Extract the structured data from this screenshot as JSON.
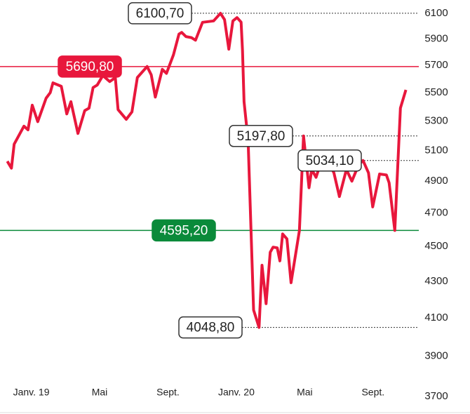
{
  "chart_data": {
    "type": "line",
    "log_scale": true,
    "x": [
      -1.4,
      -1.16,
      -1.0,
      -0.43,
      -0.19,
      0.06,
      0.38,
      0.87,
      1.11,
      1.27,
      1.76,
      2.08,
      2.32,
      2.73,
      3.13,
      3.38,
      3.62,
      3.86,
      4.19,
      4.59,
      4.92,
      5.08,
      5.56,
      5.89,
      6.21,
      6.78,
      7.02,
      7.26,
      7.67,
      7.91,
      8.32,
      8.64,
      8.8,
      9.05,
      9.37,
      9.61,
      10.02,
      10.67,
      11.07,
      11.31,
      11.56,
      11.8,
      12.04,
      12.28,
      12.36,
      12.45,
      12.69,
      13.01,
      13.33,
      13.5,
      13.74,
      13.98,
      14.15,
      14.39,
      14.55,
      14.71,
      14.96,
      15.2,
      15.69,
      15.93,
      16.25,
      16.41,
      16.66,
      16.9,
      17.22,
      17.47,
      17.71,
      18.03,
      18.44,
      18.76,
      19.17,
      19.41,
      19.73,
      19.98,
      20.38,
      20.78,
      20.94,
      21.27,
      21.6,
      21.92
    ],
    "series": [
      {
        "color": "#e8173c",
        "values": [
          5029,
          4984,
          5143,
          5265,
          5240,
          5411,
          5296,
          5460,
          5500,
          5571,
          5546,
          5350,
          5436,
          5215,
          5373,
          5390,
          5537,
          5555,
          5624,
          5580,
          5609,
          5380,
          5312,
          5364,
          5610,
          5690.8,
          5630,
          5468,
          5670,
          5640,
          5779,
          5937,
          5950,
          5918,
          5910,
          5890,
          6029,
          6040,
          6100.7,
          6050,
          5821,
          6040,
          6066,
          6030,
          5810,
          5436,
          5166,
          4142,
          4048.8,
          4391,
          4176,
          4466,
          4496,
          4492,
          4416,
          4574,
          4545,
          4292,
          4594,
          5197.8,
          4858,
          4975,
          4925,
          5005,
          4975,
          5005,
          4954,
          4803,
          4975,
          4900,
          5010,
          5034.1,
          4954,
          4738,
          4946,
          4940,
          4890,
          4595.2,
          5390,
          5520
        ]
      }
    ],
    "xlim": [
      -1.5,
      22.1
    ],
    "xticks": [
      {
        "value": 0,
        "label": "Janv. 19"
      },
      {
        "value": 4,
        "label": "Mai"
      },
      {
        "value": 8,
        "label": "Sept."
      },
      {
        "value": 12,
        "label": "Janv. 20"
      },
      {
        "value": 16,
        "label": "Mai"
      },
      {
        "value": 20,
        "label": "Sept."
      }
    ],
    "ylim": [
      3700,
      6100
    ],
    "yticks": [
      3700,
      3900,
      4100,
      4300,
      4500,
      4700,
      4900,
      5100,
      5300,
      5500,
      5700,
      5900,
      6100
    ],
    "annotations": [
      {
        "value": 6100.7,
        "label": "6100,70",
        "color": "#222222",
        "line": "dotted"
      },
      {
        "value": 5690.8,
        "label": "5690,80",
        "color": "#e8173c",
        "line": "solid"
      },
      {
        "value": 5197.8,
        "label": "5197,80",
        "color": "#222222",
        "line": "dotted"
      },
      {
        "value": 5034.1,
        "label": "5034,10",
        "color": "#222222",
        "line": "dotted"
      },
      {
        "value": 4595.2,
        "label": "4595,20",
        "color": "#0a8a3a",
        "line": "solid"
      },
      {
        "value": 4048.8,
        "label": "4048,80",
        "color": "#222222",
        "line": "dotted"
      }
    ]
  }
}
